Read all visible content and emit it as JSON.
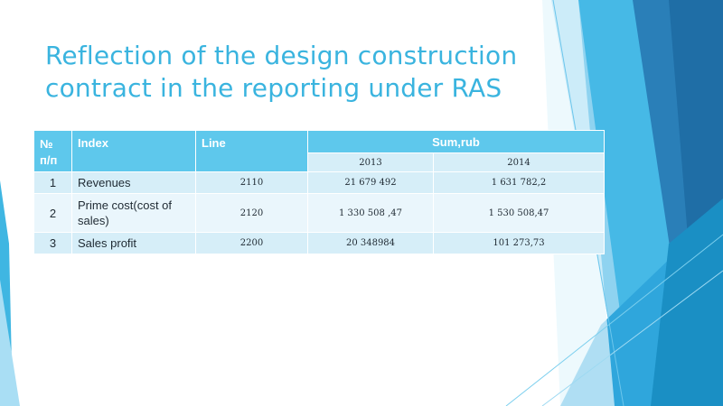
{
  "slide": {
    "title_line1": "Reflection of the design construction",
    "title_line2": "contract in the reporting under RAS"
  },
  "table": {
    "headers": {
      "num_line1": "№",
      "num_line2": "п/п",
      "index": "Index",
      "line": "Line",
      "sum": "Sum,rub",
      "year1": "2013",
      "year2": "2014"
    },
    "rows": [
      {
        "num": "1",
        "index": "Revenues",
        "line": "2110",
        "y2013": "21 679 492",
        "y2014": "1 631 782,2"
      },
      {
        "num": "2",
        "index": "Prime cost(cost of sales)",
        "line": "2120",
        "y2013": "1 330 508 ,47",
        "y2014": "1 530 508,47"
      },
      {
        "num": "3",
        "index": "Sales profit",
        "line": "2200",
        "y2013": "20 348984",
        "y2014": "101 273,73"
      }
    ]
  },
  "colors": {
    "accent": "#3ab4df",
    "header_fill": "#5ec8ec",
    "row_dark": "#d6eef8",
    "row_light": "#eaf6fc"
  }
}
